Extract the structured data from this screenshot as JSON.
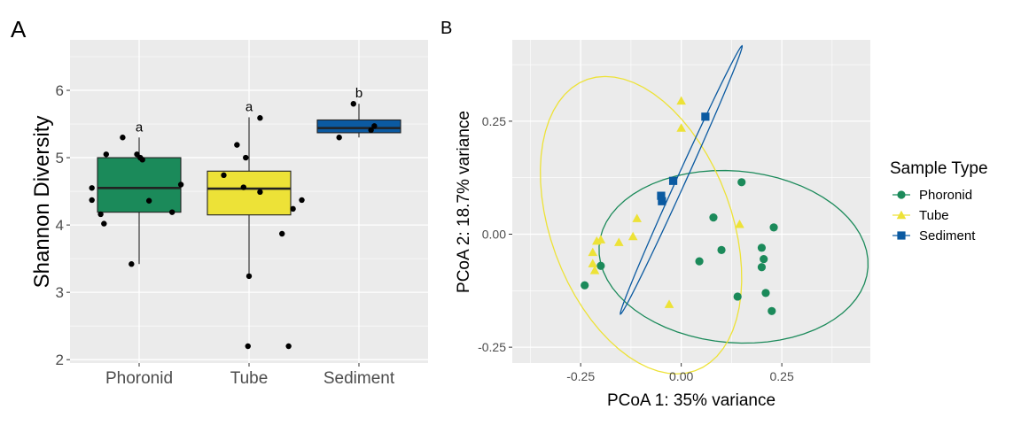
{
  "chart_data": [
    {
      "panel": "A",
      "type": "box",
      "ylabel": "Shannon Diversity",
      "xlabel": "",
      "categories": [
        "Phoronid",
        "Tube",
        "Sediment"
      ],
      "ylim": [
        1.95,
        6.75
      ],
      "yticks": [
        "2",
        "3",
        "4",
        "5",
        "6"
      ],
      "colors": [
        "#1b8a5a",
        "#ede237",
        "#0b5aa1"
      ],
      "boxes": [
        {
          "category": "Phoronid",
          "q1": 4.19,
          "median": 4.55,
          "q3": 5.0,
          "whisker_low": 3.42,
          "whisker_high": 5.3,
          "letter": "a",
          "points": [
            [
              -0.43,
              4.55
            ],
            [
              -0.43,
              4.37
            ],
            [
              -0.35,
              4.16
            ],
            [
              -0.32,
              4.02
            ],
            [
              -0.3,
              5.05
            ],
            [
              -0.15,
              5.3
            ],
            [
              -0.07,
              3.42
            ],
            [
              -0.02,
              5.05
            ],
            [
              0.01,
              5.0
            ],
            [
              0.03,
              4.97
            ],
            [
              0.09,
              4.36
            ],
            [
              0.3,
              4.19
            ],
            [
              0.38,
              4.6
            ]
          ]
        },
        {
          "category": "Tube",
          "q1": 4.15,
          "median": 4.54,
          "q3": 4.8,
          "whisker_low": 3.25,
          "whisker_high": 5.6,
          "letter": "a",
          "points": [
            [
              -0.23,
              4.74
            ],
            [
              -0.11,
              5.19
            ],
            [
              -0.05,
              4.56
            ],
            [
              -0.03,
              5.0
            ],
            [
              0.0,
              3.24
            ],
            [
              -0.01,
              2.2
            ],
            [
              0.1,
              4.49
            ],
            [
              0.1,
              5.59
            ],
            [
              0.3,
              3.87
            ],
            [
              0.4,
              4.24
            ],
            [
              0.48,
              4.37
            ],
            [
              0.36,
              2.2
            ]
          ]
        },
        {
          "category": "Sediment",
          "q1": 5.37,
          "median": 5.44,
          "q3": 5.56,
          "whisker_low": 5.3,
          "whisker_high": 5.8,
          "letter": "b",
          "points": [
            [
              -0.18,
              5.3
            ],
            [
              -0.05,
              5.8
            ],
            [
              0.11,
              5.41
            ],
            [
              0.14,
              5.47
            ]
          ]
        }
      ]
    },
    {
      "panel": "B",
      "type": "scatter",
      "xlabel": "PCoA 1: 35% variance",
      "ylabel": "PCoA 2: 18.7% variance",
      "xlim": [
        -0.42,
        0.47
      ],
      "ylim": [
        -0.285,
        0.43
      ],
      "xticks": [
        -0.25,
        0.0,
        0.25
      ],
      "xtick_labels": [
        "-0.25",
        "0.00",
        "0.25"
      ],
      "yticks": [
        -0.25,
        0.0,
        0.25
      ],
      "ytick_labels": [
        "-0.25",
        "0.00",
        "0.25"
      ],
      "legend_title": "Sample Type",
      "legend_position": "right",
      "series": [
        {
          "name": "Phoronid",
          "color": "#1b8a5a",
          "marker": "circle",
          "points": [
            [
              -0.24,
              -0.113
            ],
            [
              -0.2,
              -0.07
            ],
            [
              0.045,
              -0.06
            ],
            [
              0.08,
              0.037
            ],
            [
              0.1,
              -0.035
            ],
            [
              0.15,
              0.115
            ],
            [
              0.14,
              -0.138
            ],
            [
              0.2,
              -0.03
            ],
            [
              0.205,
              -0.055
            ],
            [
              0.2,
              -0.073
            ],
            [
              0.21,
              -0.13
            ],
            [
              0.23,
              0.015
            ],
            [
              0.225,
              -0.17
            ]
          ],
          "ellipse": {
            "cx": 0.13,
            "cy": -0.05,
            "rx": 0.335,
            "ry": 0.19,
            "angle": -4
          }
        },
        {
          "name": "Tube",
          "color": "#ede237",
          "marker": "triangle",
          "points": [
            [
              -0.21,
              -0.015
            ],
            [
              -0.2,
              -0.012
            ],
            [
              -0.22,
              -0.04
            ],
            [
              -0.22,
              -0.065
            ],
            [
              -0.215,
              -0.08
            ],
            [
              -0.155,
              -0.018
            ],
            [
              -0.12,
              -0.005
            ],
            [
              -0.11,
              0.035
            ],
            [
              -0.03,
              -0.155
            ],
            [
              0.0,
              0.235
            ],
            [
              0.0,
              0.295
            ],
            [
              0.145,
              0.022
            ]
          ],
          "ellipse": {
            "cx": -0.1,
            "cy": 0.02,
            "rx": 0.22,
            "ry": 0.35,
            "angle": 26
          }
        },
        {
          "name": "Sediment",
          "color": "#0b5aa1",
          "marker": "square",
          "points": [
            [
              -0.05,
              0.085
            ],
            [
              -0.048,
              0.073
            ],
            [
              -0.02,
              0.118
            ],
            [
              0.06,
              0.26
            ]
          ],
          "ellipse": {
            "cx": 0.0,
            "cy": 0.12,
            "rx": 0.333,
            "ry": 0.011,
            "angle": 63
          }
        }
      ]
    }
  ]
}
